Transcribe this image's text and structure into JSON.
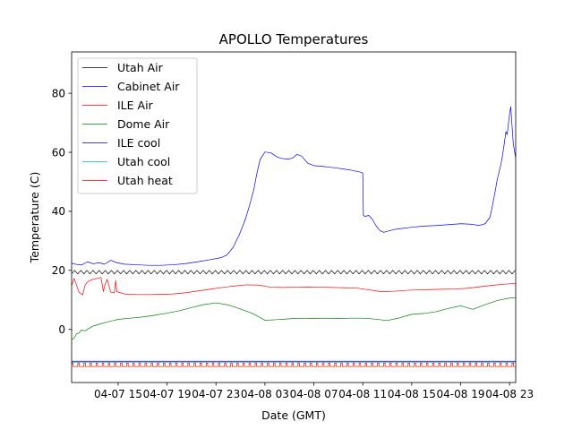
{
  "chart_data": {
    "type": "line",
    "title": "APOLLO Temperatures",
    "xlabel": "Date (GMT)",
    "ylabel": "Temperature (C)",
    "xlim": [
      11.2,
      47.5
    ],
    "ylim": [
      -18,
      94
    ],
    "x_unit": "hours since 04-07 00:00 GMT",
    "x_ticks": [
      {
        "x": 15,
        "label": "04-07 15"
      },
      {
        "x": 19,
        "label": "04-07 19"
      },
      {
        "x": 23,
        "label": "04-07 23"
      },
      {
        "x": 27,
        "label": "04-08 03"
      },
      {
        "x": 31,
        "label": "04-08 07"
      },
      {
        "x": 35,
        "label": "04-08 11"
      },
      {
        "x": 39,
        "label": "04-08 15"
      },
      {
        "x": 43,
        "label": "04-08 19"
      },
      {
        "x": 47,
        "label": "04-08 23"
      }
    ],
    "y_ticks": [
      {
        "y": 0,
        "label": "0"
      },
      {
        "y": 20,
        "label": "20"
      },
      {
        "y": 40,
        "label": "40"
      },
      {
        "y": 60,
        "label": "60"
      },
      {
        "y": 80,
        "label": "80"
      }
    ],
    "legend_position": "top-left",
    "series": [
      {
        "name": "Utah Air",
        "color": "#000000",
        "oscillation": {
          "base": 19.4,
          "amplitude": 0.6,
          "period_hours": 0.5
        },
        "x": [
          11.2,
          47.5
        ],
        "y": [
          19.4,
          19.4
        ]
      },
      {
        "name": "Cabinet Air",
        "color": "#0000ff",
        "x": [
          11.2,
          11.6,
          12.0,
          12.5,
          13.0,
          13.4,
          13.9,
          14.4,
          14.9,
          15.5,
          16.5,
          17.5,
          18.5,
          19.5,
          20.5,
          21.5,
          22.5,
          23.4,
          23.9,
          24.4,
          24.9,
          25.4,
          25.8,
          26.1,
          26.3,
          26.6,
          27.0,
          27.5,
          28.0,
          28.4,
          28.9,
          29.3,
          29.6,
          30.0,
          30.5,
          31.0,
          32.0,
          33.0,
          34.0,
          34.9,
          35.0,
          35.05,
          35.2,
          35.5,
          35.8,
          36.1,
          36.4,
          36.7,
          37.0,
          37.5,
          38.0,
          39.0,
          40.0,
          41.0,
          42.0,
          43.0,
          44.0,
          44.5,
          45.0,
          45.4,
          45.7,
          46.0,
          46.3,
          46.5,
          46.7,
          46.8,
          47.0,
          47.1,
          47.2,
          47.3,
          47.5
        ],
        "y": [
          22.4,
          22.0,
          21.8,
          22.9,
          22.2,
          22.6,
          22.1,
          23.4,
          22.6,
          22.1,
          21.9,
          21.7,
          21.7,
          21.9,
          22.3,
          22.9,
          23.6,
          24.3,
          25.2,
          27.8,
          32.0,
          37.3,
          42.8,
          47.5,
          52.0,
          57.5,
          60.1,
          59.8,
          58.4,
          57.9,
          57.7,
          58.1,
          59.3,
          58.7,
          56.3,
          55.5,
          55.1,
          54.6,
          54.0,
          53.2,
          52.9,
          38.6,
          38.3,
          38.6,
          37.2,
          35.0,
          33.5,
          32.9,
          33.2,
          33.8,
          34.1,
          34.6,
          35.0,
          35.2,
          35.5,
          35.8,
          35.6,
          35.2,
          35.8,
          38.0,
          44.0,
          51.0,
          56.0,
          61.0,
          67.0,
          66.0,
          73.0,
          75.5,
          69.0,
          63.0,
          58.0
        ]
      },
      {
        "name": "ILE Air",
        "color": "#ff0000",
        "x": [
          11.2,
          11.4,
          11.5,
          11.8,
          12.1,
          12.3,
          12.5,
          12.8,
          13.2,
          13.6,
          13.8,
          13.9,
          14.1,
          14.4,
          14.7,
          14.8,
          14.9,
          15.5,
          16.5,
          17.5,
          18.5,
          19.5,
          20.5,
          21.5,
          22.5,
          23.5,
          24.5,
          25.5,
          26.5,
          27.0,
          27.5,
          28.5,
          29.5,
          30.5,
          31.5,
          32.5,
          33.5,
          34.5,
          35.5,
          36.5,
          37.5,
          38.5,
          39.5,
          40.5,
          41.5,
          42.5,
          43.5,
          44.5,
          45.5,
          46.5,
          47.5
        ],
        "y": [
          14.8,
          17.3,
          16.2,
          12.6,
          11.7,
          15.0,
          16.1,
          16.8,
          17.2,
          17.6,
          12.8,
          14.8,
          17.0,
          12.6,
          12.4,
          16.5,
          12.8,
          12.0,
          11.8,
          11.8,
          11.9,
          12.0,
          12.4,
          13.0,
          13.6,
          14.2,
          14.7,
          15.1,
          15.0,
          14.6,
          14.3,
          14.2,
          14.3,
          14.4,
          14.3,
          14.2,
          14.1,
          14.0,
          13.4,
          12.8,
          12.9,
          13.2,
          13.4,
          13.5,
          13.6,
          13.7,
          13.9,
          14.4,
          14.9,
          15.3,
          15.6
        ]
      },
      {
        "name": "Dome Air",
        "color": "#008000",
        "x": [
          11.2,
          11.4,
          11.6,
          11.8,
          12.0,
          12.3,
          12.6,
          13.0,
          13.5,
          14.0,
          15.0,
          16.0,
          17.0,
          18.0,
          19.0,
          20.0,
          21.0,
          22.0,
          23.0,
          24.0,
          25.0,
          26.0,
          27.0,
          28.0,
          29.0,
          30.0,
          31.0,
          32.0,
          33.0,
          34.0,
          35.0,
          36.0,
          37.0,
          38.0,
          39.0,
          40.0,
          41.0,
          42.0,
          43.0,
          44.0,
          45.0,
          46.0,
          47.0,
          47.5
        ],
        "y": [
          -3.4,
          -3.0,
          -1.5,
          -1.2,
          -0.2,
          -0.5,
          0.3,
          1.2,
          1.8,
          2.4,
          3.4,
          3.8,
          4.2,
          4.8,
          5.5,
          6.3,
          7.4,
          8.4,
          9.0,
          8.3,
          6.9,
          5.4,
          3.1,
          3.3,
          3.6,
          3.8,
          3.7,
          3.8,
          3.7,
          3.8,
          3.8,
          3.5,
          3.0,
          3.9,
          5.1,
          5.4,
          6.0,
          7.1,
          8.0,
          6.8,
          8.4,
          9.8,
          10.6,
          10.7
        ]
      },
      {
        "name": "ILE cool",
        "color": "#0000bf",
        "x": [
          11.2,
          47.5
        ],
        "y": [
          -10.8,
          -10.8
        ]
      },
      {
        "name": "Utah cool",
        "color": "#00bfbf",
        "x": [
          11.2,
          47.5
        ],
        "y": [
          -11.1,
          -11.1
        ]
      },
      {
        "name": "Utah heat",
        "color": "#ff0000",
        "pulse": {
          "base": -12.6,
          "high": -11.4,
          "period_hours": 0.5,
          "duty": 0.25
        },
        "x": [
          11.2,
          47.5
        ],
        "y": [
          -12.6,
          -12.6
        ]
      }
    ]
  }
}
